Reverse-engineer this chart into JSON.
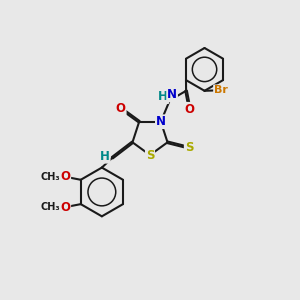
{
  "bg_color": "#e8e8e8",
  "bond_color": "#1a1a1a",
  "bond_lw": 1.5,
  "dbl_off": 0.055,
  "figsize": [
    3.0,
    3.0
  ],
  "dpi": 100,
  "xlim": [
    0,
    10
  ],
  "ylim": [
    0,
    10
  ],
  "colors": {
    "N": "#0000cc",
    "O": "#cc0000",
    "S": "#aaaa00",
    "Br": "#cc7700",
    "H": "#008888"
  },
  "font_size": 8.5
}
